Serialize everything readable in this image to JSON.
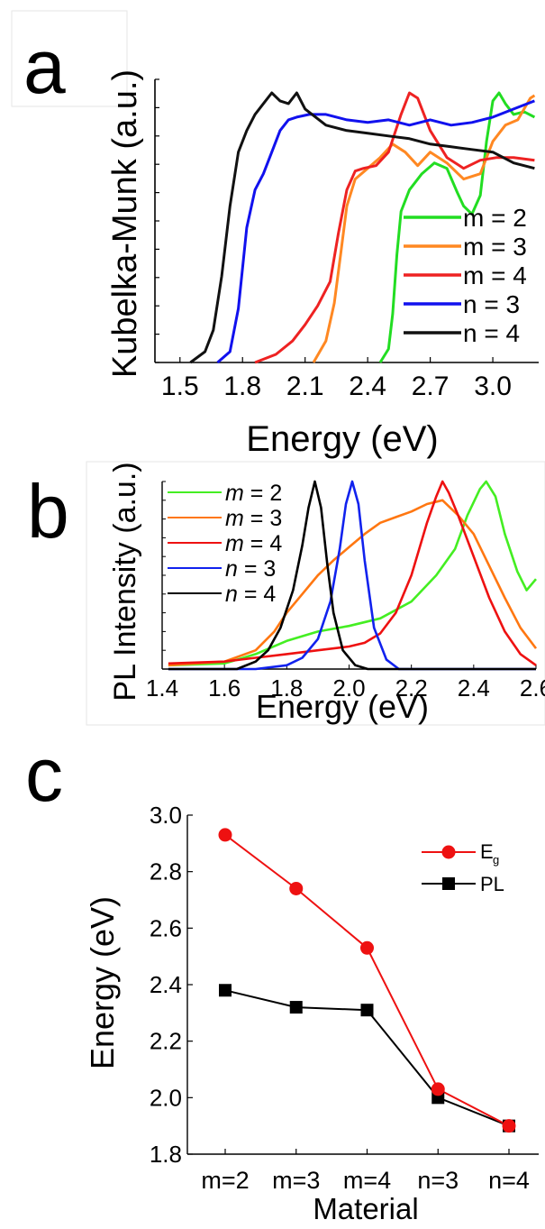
{
  "chart_data": [
    {
      "panel": "a",
      "type": "line",
      "xlabel": "Energy (eV)",
      "ylabel": "Kubelka-Munk (a.u.)",
      "xlim": [
        1.38,
        3.22
      ],
      "ylim": [
        0,
        1.05
      ],
      "xticks": [
        "1.5",
        "1.8",
        "2.1",
        "2.4",
        "2.7",
        "3.0"
      ],
      "legend_position": "right-middle",
      "series": [
        {
          "name": "m = 2",
          "color": "#22dd22",
          "x": [
            2.46,
            2.5,
            2.52,
            2.54,
            2.56,
            2.6,
            2.66,
            2.72,
            2.78,
            2.83,
            2.86,
            2.9,
            2.94,
            2.97,
            3.0,
            3.03,
            3.06,
            3.1,
            3.15,
            3.2
          ],
          "y": [
            0.0,
            0.05,
            0.18,
            0.4,
            0.56,
            0.64,
            0.7,
            0.74,
            0.72,
            0.63,
            0.58,
            0.55,
            0.62,
            0.82,
            0.97,
            1.0,
            0.96,
            0.92,
            0.93,
            0.91
          ]
        },
        {
          "name": "m = 3",
          "color": "#ff8822",
          "x": [
            2.14,
            2.2,
            2.24,
            2.27,
            2.3,
            2.34,
            2.4,
            2.46,
            2.52,
            2.58,
            2.64,
            2.7,
            2.78,
            2.86,
            2.94,
            3.0,
            3.06,
            3.12,
            3.18,
            3.2
          ],
          "y": [
            0.0,
            0.08,
            0.22,
            0.4,
            0.58,
            0.68,
            0.72,
            0.76,
            0.81,
            0.78,
            0.73,
            0.78,
            0.74,
            0.68,
            0.7,
            0.82,
            0.88,
            0.9,
            0.98,
            0.99
          ]
        },
        {
          "name": "m = 4",
          "color": "#ee2222",
          "x": [
            1.86,
            1.96,
            2.04,
            2.1,
            2.16,
            2.22,
            2.26,
            2.3,
            2.34,
            2.38,
            2.44,
            2.5,
            2.56,
            2.6,
            2.64,
            2.7,
            2.78,
            2.86,
            2.94,
            3.02,
            3.1,
            3.2
          ],
          "y": [
            0.0,
            0.03,
            0.08,
            0.14,
            0.21,
            0.3,
            0.48,
            0.64,
            0.71,
            0.72,
            0.73,
            0.78,
            0.92,
            1.0,
            0.98,
            0.86,
            0.76,
            0.72,
            0.75,
            0.76,
            0.76,
            0.75
          ]
        },
        {
          "name": "n = 3",
          "color": "#1111ee",
          "x": [
            1.68,
            1.74,
            1.78,
            1.82,
            1.86,
            1.9,
            1.94,
            1.98,
            2.02,
            2.06,
            2.12,
            2.2,
            2.3,
            2.4,
            2.5,
            2.6,
            2.7,
            2.8,
            2.9,
            3.0,
            3.1,
            3.2
          ],
          "y": [
            0.0,
            0.04,
            0.2,
            0.5,
            0.64,
            0.7,
            0.78,
            0.86,
            0.9,
            0.91,
            0.92,
            0.92,
            0.9,
            0.89,
            0.9,
            0.88,
            0.9,
            0.88,
            0.89,
            0.91,
            0.94,
            0.97
          ]
        },
        {
          "name": "n = 4",
          "color": "#111111",
          "x": [
            1.55,
            1.62,
            1.66,
            1.7,
            1.74,
            1.78,
            1.82,
            1.86,
            1.9,
            1.94,
            1.98,
            2.02,
            2.06,
            2.1,
            2.2,
            2.3,
            2.4,
            2.5,
            2.6,
            2.7,
            2.8,
            2.9,
            3.0,
            3.1,
            3.2
          ],
          "y": [
            0.0,
            0.04,
            0.12,
            0.32,
            0.58,
            0.78,
            0.86,
            0.92,
            0.96,
            1.0,
            0.97,
            0.96,
            1.0,
            0.94,
            0.88,
            0.86,
            0.85,
            0.84,
            0.83,
            0.81,
            0.8,
            0.79,
            0.78,
            0.74,
            0.72
          ]
        }
      ]
    },
    {
      "panel": "b",
      "type": "line",
      "xlabel": "Energy (eV)",
      "ylabel": "PL Intensity (a.u.)",
      "xlim": [
        1.4,
        2.6
      ],
      "ylim": [
        0,
        1.0
      ],
      "xticks": [
        "1.4",
        "1.6",
        "1.8",
        "2.0",
        "2.2",
        "2.4",
        "2.6"
      ],
      "legend_position": "top-left",
      "series": [
        {
          "name_var": "m",
          "name_val": " = 2",
          "color": "#44ee22",
          "x": [
            1.42,
            1.6,
            1.7,
            1.8,
            1.9,
            2.0,
            2.1,
            2.2,
            2.28,
            2.34,
            2.38,
            2.42,
            2.44,
            2.47,
            2.5,
            2.54,
            2.57,
            2.6
          ],
          "y": [
            0.02,
            0.03,
            0.08,
            0.15,
            0.2,
            0.23,
            0.27,
            0.36,
            0.5,
            0.64,
            0.82,
            0.96,
            1.0,
            0.92,
            0.72,
            0.52,
            0.42,
            0.48
          ]
        },
        {
          "name_var": "m",
          "name_val": " = 3",
          "color": "#ff7711",
          "x": [
            1.42,
            1.6,
            1.7,
            1.76,
            1.8,
            1.85,
            1.9,
            1.95,
            2.0,
            2.05,
            2.1,
            2.15,
            2.2,
            2.25,
            2.3,
            2.35,
            2.4,
            2.45,
            2.5,
            2.55,
            2.6
          ],
          "y": [
            0.02,
            0.04,
            0.1,
            0.2,
            0.3,
            0.4,
            0.5,
            0.58,
            0.65,
            0.72,
            0.78,
            0.81,
            0.84,
            0.88,
            0.9,
            0.82,
            0.72,
            0.55,
            0.38,
            0.22,
            0.11
          ]
        },
        {
          "name_var": "m",
          "name_val": " = 4",
          "color": "#ee1111",
          "x": [
            1.42,
            1.6,
            1.7,
            1.8,
            1.9,
            2.0,
            2.05,
            2.1,
            2.15,
            2.2,
            2.25,
            2.28,
            2.3,
            2.32,
            2.35,
            2.4,
            2.45,
            2.5,
            2.55,
            2.6
          ],
          "y": [
            0.03,
            0.04,
            0.06,
            0.08,
            0.1,
            0.12,
            0.14,
            0.19,
            0.3,
            0.5,
            0.78,
            0.92,
            1.0,
            0.94,
            0.82,
            0.6,
            0.38,
            0.2,
            0.08,
            0.02
          ]
        },
        {
          "name_var": "n",
          "name_val": " = 3",
          "color": "#1122ee",
          "x": [
            1.42,
            1.7,
            1.8,
            1.85,
            1.9,
            1.94,
            1.97,
            1.99,
            2.01,
            2.03,
            2.05,
            2.08,
            2.12,
            2.16,
            2.6
          ],
          "y": [
            0.0,
            0.0,
            0.02,
            0.06,
            0.16,
            0.36,
            0.64,
            0.88,
            1.0,
            0.88,
            0.58,
            0.22,
            0.05,
            0.0,
            0.0
          ]
        },
        {
          "name_var": "n",
          "name_val": " = 4",
          "color": "#000000",
          "x": [
            1.42,
            1.64,
            1.7,
            1.74,
            1.78,
            1.82,
            1.85,
            1.87,
            1.89,
            1.91,
            1.93,
            1.95,
            1.98,
            2.02,
            2.06,
            2.6
          ],
          "y": [
            0.0,
            0.0,
            0.04,
            0.1,
            0.22,
            0.42,
            0.66,
            0.86,
            1.0,
            0.86,
            0.56,
            0.3,
            0.1,
            0.02,
            0.0,
            0.0
          ]
        }
      ]
    },
    {
      "panel": "c",
      "type": "line",
      "xlabel": "Material",
      "ylabel": "Energy (eV)",
      "categories": [
        "m=2",
        "m=3",
        "m=4",
        "n=3",
        "n=4"
      ],
      "ylim": [
        1.8,
        3.0
      ],
      "yticks": [
        "1.8",
        "2.0",
        "2.2",
        "2.4",
        "2.6",
        "2.8",
        "3.0"
      ],
      "legend_position": "top-right",
      "series": [
        {
          "name": "E",
          "name_sub": "g",
          "color": "#ee1111",
          "marker": "circle",
          "values": [
            2.93,
            2.74,
            2.53,
            2.03,
            1.9
          ]
        },
        {
          "name": "PL",
          "color": "#000000",
          "marker": "square",
          "values": [
            2.38,
            2.32,
            2.31,
            2.0,
            1.9
          ]
        }
      ]
    }
  ],
  "panels": {
    "a": "a",
    "b": "b",
    "c": "c"
  }
}
